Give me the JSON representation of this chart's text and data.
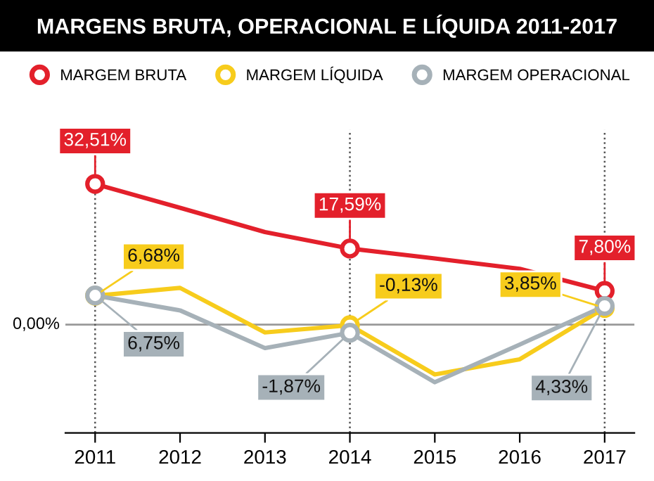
{
  "chart_data": {
    "type": "line",
    "title": "MARGENS BRUTA, OPERACIONAL E LÍQUIDA 2011-2017",
    "categories": [
      "2011",
      "2012",
      "2013",
      "2014",
      "2015",
      "2016",
      "2017"
    ],
    "series": [
      {
        "name": "MARGEM BRUTA",
        "color": "#e3202b",
        "values": [
          32.51,
          27.0,
          21.4,
          17.59,
          15.3,
          12.9,
          7.8
        ],
        "value_labels": [
          "32,51%",
          null,
          null,
          "17,59%",
          null,
          null,
          "7,80%"
        ]
      },
      {
        "name": "MARGEM LÍQUIDA",
        "color": "#f7cc1c",
        "values": [
          6.68,
          8.5,
          -1.8,
          -0.13,
          -11.5,
          -8.0,
          3.85
        ],
        "value_labels": [
          "6,68%",
          null,
          null,
          "-0,13%",
          null,
          null,
          "3,85%"
        ]
      },
      {
        "name": "MARGEM OPERACIONAL",
        "color": "#a6b1b8",
        "values": [
          6.75,
          3.3,
          -5.4,
          -1.87,
          -13.3,
          -4.6,
          4.33
        ],
        "value_labels": [
          "6,75%",
          null,
          null,
          "-1,87%",
          null,
          null,
          "4,33%"
        ]
      }
    ],
    "ylim": [
      -25,
      45
    ],
    "ref_lines": [
      {
        "axis": "y",
        "value": 0,
        "label": "0,00%",
        "color": "#999999",
        "line_style": "solid"
      },
      {
        "axis": "x",
        "value": "2011",
        "label": null,
        "color": "#555555",
        "line_style": "dotted"
      },
      {
        "axis": "x",
        "value": "2014",
        "label": null,
        "color": "#555555",
        "line_style": "dotted"
      },
      {
        "axis": "x",
        "value": "2017",
        "label": null,
        "color": "#555555",
        "line_style": "dotted"
      }
    ],
    "line_style": "solid",
    "grid": false,
    "legend": "top"
  }
}
